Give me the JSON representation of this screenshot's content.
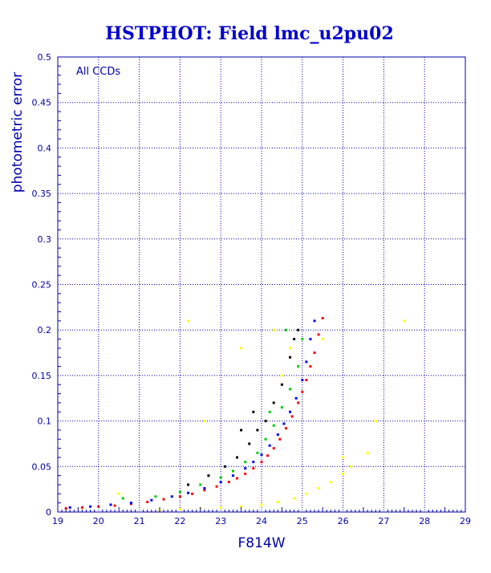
{
  "chart_data": {
    "type": "scatter",
    "title": "HSTPHOT: Field lmc_u2pu02",
    "xlabel": "F814W",
    "ylabel": "photometric error",
    "annotation": "All CCDs",
    "xlim": [
      19,
      29
    ],
    "ylim": [
      0,
      0.5
    ],
    "xticks": [
      "19",
      "20",
      "21",
      "22",
      "23",
      "24",
      "25",
      "26",
      "27",
      "28",
      "29"
    ],
    "yticks": [
      "0",
      "0.05",
      "0.1",
      "0.15",
      "0.2",
      "0.25",
      "0.3",
      "0.35",
      "0.4",
      "0.45",
      "0.5"
    ],
    "grid": true,
    "series": [
      {
        "color": "#ff0000",
        "x": [
          19.2,
          19.6,
          20.0,
          20.4,
          20.8,
          21.2,
          21.6,
          22.0,
          22.3,
          22.6,
          22.9,
          23.2,
          23.4,
          23.6,
          23.8,
          24.0,
          24.15,
          24.3,
          24.45,
          24.6,
          24.75,
          24.9,
          25.0,
          25.1,
          25.2,
          25.3,
          25.4,
          25.5
        ],
        "y": [
          0.004,
          0.005,
          0.006,
          0.007,
          0.009,
          0.011,
          0.014,
          0.017,
          0.02,
          0.024,
          0.028,
          0.033,
          0.037,
          0.042,
          0.048,
          0.055,
          0.062,
          0.07,
          0.08,
          0.092,
          0.105,
          0.12,
          0.132,
          0.145,
          0.16,
          0.175,
          0.195,
          0.213
        ]
      },
      {
        "color": "#0000ff",
        "x": [
          19.3,
          19.8,
          20.3,
          20.8,
          21.3,
          21.8,
          22.2,
          22.6,
          23.0,
          23.3,
          23.6,
          23.8,
          24.0,
          24.2,
          24.4,
          24.55,
          24.7,
          24.85,
          25.0,
          25.1,
          25.2,
          25.3
        ],
        "y": [
          0.005,
          0.006,
          0.008,
          0.01,
          0.013,
          0.017,
          0.021,
          0.026,
          0.033,
          0.04,
          0.048,
          0.055,
          0.063,
          0.073,
          0.085,
          0.097,
          0.11,
          0.125,
          0.145,
          0.165,
          0.19,
          0.21
        ]
      },
      {
        "color": "#00cc00",
        "x": [
          20.6,
          21.4,
          22.0,
          22.5,
          23.0,
          23.3,
          23.6,
          23.9,
          24.1,
          24.3,
          24.5,
          24.7,
          24.9,
          25.0,
          24.6,
          24.2
        ],
        "y": [
          0.015,
          0.017,
          0.022,
          0.03,
          0.038,
          0.045,
          0.055,
          0.065,
          0.08,
          0.095,
          0.115,
          0.135,
          0.16,
          0.19,
          0.2,
          0.11
        ]
      },
      {
        "color": "#000000",
        "x": [
          22.2,
          22.7,
          23.1,
          23.4,
          23.7,
          23.9,
          24.1,
          24.3,
          24.5,
          24.7,
          24.8,
          24.9,
          23.5,
          23.8
        ],
        "y": [
          0.03,
          0.04,
          0.05,
          0.06,
          0.075,
          0.09,
          0.1,
          0.12,
          0.14,
          0.17,
          0.19,
          0.2,
          0.09,
          0.11
        ]
      },
      {
        "color": "#ffff00",
        "x": [
          21.5,
          22.0,
          22.5,
          23.0,
          23.5,
          24.0,
          24.4,
          24.8,
          25.1,
          25.4,
          25.7,
          26.0,
          26.2,
          26.6,
          26.8,
          27.5,
          22.2,
          22.6,
          23.5,
          24.3,
          24.5,
          24.7,
          25.5,
          26.0,
          20.5
        ],
        "y": [
          0.002,
          0.003,
          0.004,
          0.005,
          0.006,
          0.008,
          0.011,
          0.015,
          0.02,
          0.026,
          0.033,
          0.042,
          0.05,
          0.065,
          0.1,
          0.21,
          0.21,
          0.1,
          0.18,
          0.2,
          0.15,
          0.18,
          0.19,
          0.06,
          0.02
        ]
      }
    ]
  }
}
